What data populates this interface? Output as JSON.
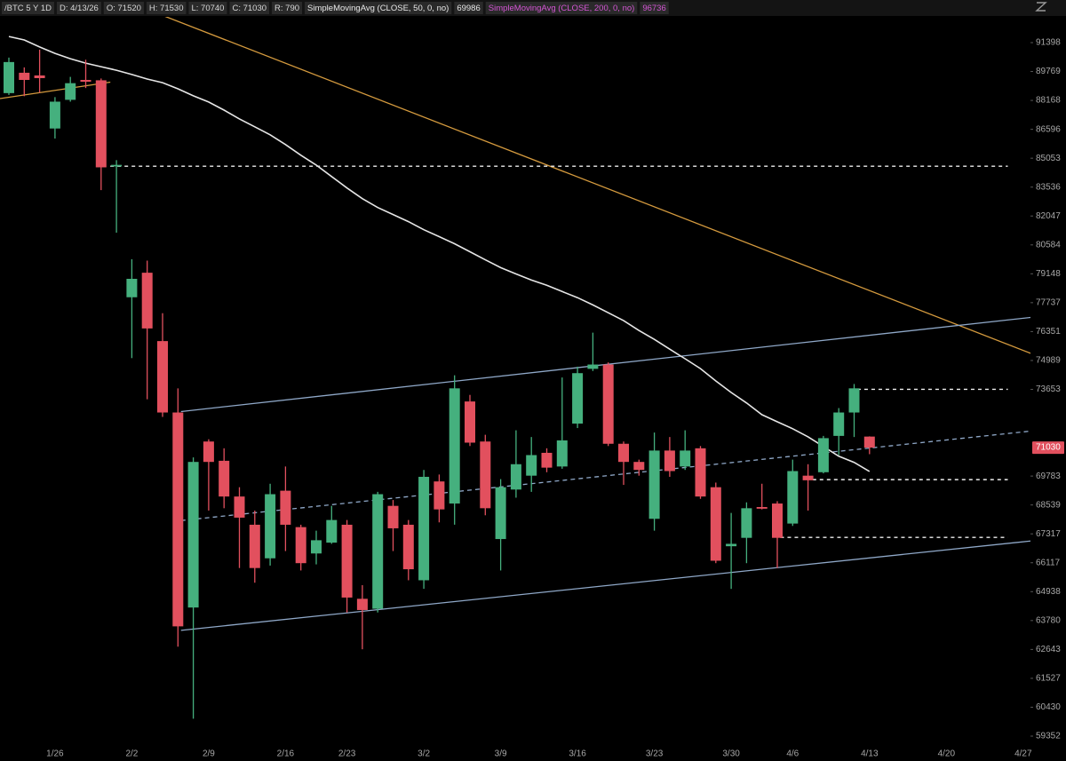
{
  "chart_data": {
    "type": "candlestick",
    "header": {
      "symbol": "/BTC 5 Y 1D",
      "date": "D: 4/13/26",
      "open": "O: 71520",
      "high": "H: 71530",
      "low": "L: 70740",
      "close": "C: 71030",
      "range": "R: 790",
      "sma50_value": "69986",
      "sma200": "SimpleMovingAvg (CLOSE, 200, 0, no)",
      "sma200_value": "96736"
    },
    "categories": [
      null,
      null,
      null,
      "1/26",
      null,
      null,
      null,
      null,
      "2/2",
      null,
      null,
      null,
      null,
      "2/9",
      null,
      null,
      null,
      null,
      "2/16",
      null,
      null,
      null,
      "2/23",
      null,
      null,
      null,
      null,
      "3/2",
      null,
      null,
      null,
      null,
      "3/9",
      null,
      null,
      null,
      null,
      "3/16",
      null,
      null,
      null,
      null,
      "3/23",
      null,
      null,
      null,
      null,
      "3/30",
      null,
      null,
      null,
      "4/6",
      null,
      null,
      null,
      null,
      "4/13",
      null,
      null,
      null,
      null,
      "4/20",
      null,
      null,
      null,
      null,
      "4/27"
    ],
    "open": [
      88570,
      89700,
      89550,
      86640,
      88200,
      89300,
      89280,
      84620,
      78000,
      79200,
      75900,
      72600,
      64300,
      71300,
      70450,
      68900,
      67700,
      66300,
      69150,
      67600,
      66500,
      66950,
      67700,
      64650,
      64250,
      68500,
      67700,
      65400,
      69550,
      68600,
      73100,
      71300,
      67100,
      69200,
      69800,
      70800,
      70200,
      72100,
      74600,
      74800,
      71200,
      70400,
      67950,
      70900,
      70200,
      71000,
      69300,
      66800,
      67150,
      68450,
      68600,
      67750,
      69800,
      69950,
      71550,
      72600,
      71520,
      null,
      null,
      null,
      null,
      null,
      null,
      null,
      null,
      null,
      null
    ],
    "high": [
      90550,
      90000,
      91000,
      88350,
      89470,
      90430,
      89380,
      84950,
      79870,
      79800,
      77230,
      73700,
      70600,
      71400,
      71000,
      69300,
      68300,
      69450,
      70200,
      67700,
      67450,
      68500,
      67900,
      65200,
      69100,
      68750,
      67900,
      70050,
      69850,
      74300,
      73400,
      71600,
      69650,
      71800,
      71500,
      71000,
      74200,
      74700,
      76300,
      74900,
      71300,
      70500,
      71700,
      71500,
      71800,
      71100,
      69500,
      68200,
      68650,
      69450,
      68700,
      70500,
      70300,
      71550,
      72800,
      73900,
      71530,
      null,
      null,
      null,
      null,
      null,
      null,
      null,
      null,
      null,
      null
    ],
    "low": [
      88470,
      88400,
      88600,
      86100,
      88100,
      88850,
      83380,
      81200,
      75100,
      73200,
      72400,
      62750,
      60000,
      68300,
      68400,
      65900,
      65300,
      66000,
      66600,
      65800,
      66050,
      66900,
      64100,
      62650,
      64100,
      66600,
      65400,
      65050,
      67800,
      67700,
      71100,
      68100,
      65800,
      68850,
      69100,
      69950,
      70100,
      71900,
      74500,
      71100,
      69400,
      69800,
      67450,
      69750,
      70050,
      68800,
      66100,
      65050,
      66100,
      68350,
      65900,
      67650,
      68300,
      69900,
      70700,
      71500,
      70740,
      null,
      null,
      null,
      null,
      null,
      null,
      null,
      null,
      null,
      null
    ],
    "close": [
      90300,
      89300,
      89400,
      88100,
      89120,
      89200,
      84570,
      84700,
      78900,
      76500,
      72600,
      63550,
      70400,
      70400,
      68900,
      68000,
      65900,
      69000,
      67700,
      66100,
      67050,
      67900,
      64700,
      64200,
      69000,
      67550,
      65850,
      69750,
      68350,
      73700,
      71250,
      68400,
      69300,
      70300,
      70700,
      70150,
      71350,
      74400,
      74800,
      71200,
      70400,
      70050,
      70900,
      70000,
      70900,
      68900,
      66200,
      66900,
      68400,
      68380,
      67150,
      70000,
      69600,
      71450,
      72600,
      73700,
      71030,
      null,
      null,
      null,
      null,
      null,
      null,
      null,
      null,
      null,
      null
    ],
    "up_color": "#45b07e",
    "down_color": "#e2505e",
    "series": [
      {
        "name": "SimpleMovingAvg (CLOSE, 50, 0, no)",
        "color": "#e6e6e6",
        "values": [
          91750,
          91550,
          91150,
          90790,
          90490,
          90240,
          90040,
          89840,
          89600,
          89350,
          89150,
          88810,
          88420,
          88080,
          87640,
          87160,
          86730,
          86300,
          85780,
          85210,
          84690,
          84090,
          83490,
          82940,
          82480,
          82120,
          81760,
          81350,
          81000,
          80640,
          80240,
          79840,
          79450,
          79140,
          78840,
          78580,
          78280,
          77980,
          77630,
          77250,
          76870,
          76400,
          75980,
          75520,
          75070,
          74610,
          74040,
          73510,
          73030,
          72500,
          72180,
          71870,
          71510,
          71080,
          70650,
          70380,
          69986,
          null,
          null,
          null,
          null,
          null,
          null,
          null,
          null,
          null,
          null
        ]
      }
    ],
    "trend_lines": [
      {
        "color": "#d49a3e",
        "dashed": false,
        "x": [
          10.1,
          66.5
        ],
        "values": [
          92926,
          75321
        ]
      },
      {
        "color": "#d49a3e",
        "dashed": false,
        "x": [
          -0.6,
          6.6
        ],
        "values": [
          88266,
          89176
        ]
      },
      {
        "color": "#8fa8c8",
        "dashed": false,
        "x": [
          11.2,
          66.5
        ],
        "values": [
          72643,
          77028
        ]
      },
      {
        "color": "#8fa8c8",
        "dashed": false,
        "x": [
          11.2,
          66.5
        ],
        "values": [
          63392,
          67020
        ]
      },
      {
        "color": "#8fa8c8",
        "dashed": true,
        "x": [
          11.2,
          66.5
        ],
        "values": [
          67877,
          71765
        ]
      }
    ],
    "price_lines": [
      {
        "value": 84630,
        "x": [
          6.6,
          65
        ]
      },
      {
        "value": 73653,
        "x": [
          55.2,
          65
        ]
      },
      {
        "value": 69629,
        "x": [
          52.3,
          65
        ]
      },
      {
        "value": 67168,
        "x": [
          50.2,
          65
        ]
      }
    ],
    "last_price": {
      "value": 71030,
      "color": "#e2505e"
    },
    "log_scale": true,
    "ylim": [
      58992,
      92824
    ],
    "yticks": [
      91398,
      89769,
      88168,
      86596,
      85053,
      83536,
      82047,
      80584,
      79148,
      77737,
      76351,
      74989,
      73653,
      69783,
      68539,
      67317,
      66117,
      64938,
      63780,
      62643,
      61527,
      60430,
      59352
    ]
  }
}
